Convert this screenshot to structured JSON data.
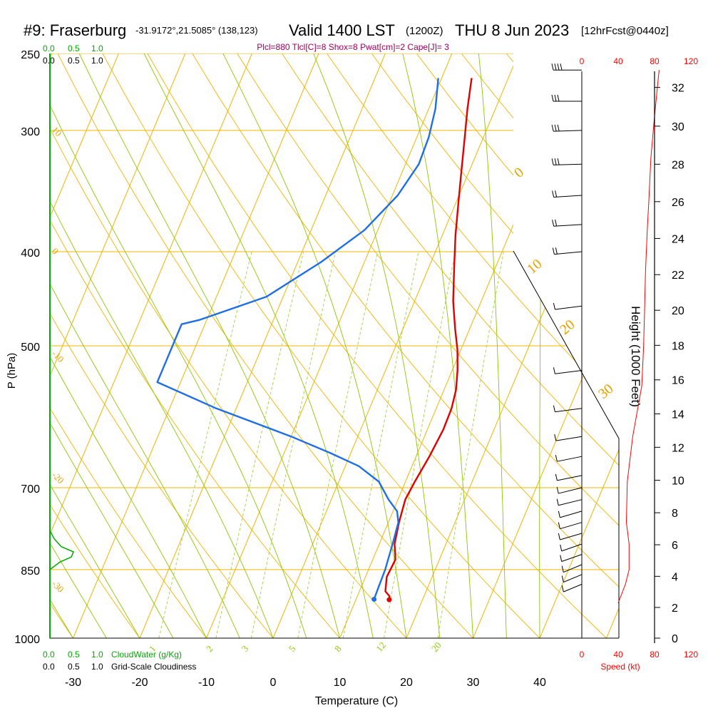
{
  "header": {
    "station": "#9: Fraserburg",
    "coords": "-31.9172°,21.5085° (138,123)",
    "valid": "Valid 1400 LST",
    "zulu": "(1200Z)",
    "date": "THU 8 Jun 2023",
    "forecast": "[12hrFcst@0440z]"
  },
  "indices": "Plcl=880 Tlcl[C]=8 Shox=8 Pwat[cm]=2 Cape[J]= 3",
  "colors": {
    "isotherm": "#f0b400",
    "dry_adiabat": "#8cc800",
    "mixing_ratio": "#a0d040",
    "temperature": "#e00000",
    "dewpoint": "#1e6ee6",
    "cloud": "#00aa00",
    "wind_profile": "#ff0000"
  },
  "cloud_axis": {
    "top_green": [
      "0.0",
      "0.5",
      "1.0"
    ],
    "top_black": [
      "0.0",
      "0.5",
      "1.0"
    ],
    "bottom_green": [
      "0.0",
      "0.5",
      "1.0"
    ],
    "bottom_green_title": "CloudWater (g/Kg)",
    "bottom_black": [
      "0.0",
      "0.5",
      "1.0"
    ],
    "bottom_black_title": "Grid-Scale Cloudiness"
  },
  "speed_axis": {
    "top": [
      "0",
      "40",
      "80",
      "120"
    ],
    "bottom": [
      "0",
      "40",
      "80",
      "120"
    ],
    "title": "Speed (kt)"
  },
  "height_axis_title": "Height (1000 Feet)",
  "chart_data": {
    "type": "line",
    "title": "",
    "xlabel": "Temperature (C)",
    "ylabel": "P (hPa)",
    "x_ticks": [
      -30,
      -20,
      -10,
      0,
      10,
      20,
      30,
      40
    ],
    "pressure_ticks": [
      250,
      300,
      400,
      500,
      700,
      850,
      1000
    ],
    "ylim": [
      1000,
      250
    ],
    "y_scale": "log",
    "grid": true,
    "isotherm_labels": [
      {
        "text": "10",
        "p": 300
      },
      {
        "text": "0",
        "p": 400
      },
      {
        "text": "-10",
        "p": 510
      },
      {
        "text": "-20",
        "p": 680
      },
      {
        "text": "-30",
        "p": 880
      }
    ],
    "theta_labels": [
      "0",
      "10",
      "20",
      "30"
    ],
    "mixing_ratio_labels": [
      "1",
      "2",
      "3",
      "5",
      "8",
      "12",
      "20"
    ],
    "series": [
      {
        "key": "temperature",
        "points": [
          [
            -5.5,
            265
          ],
          [
            -4.2,
            285
          ],
          [
            -2.8,
            305
          ],
          [
            -1.2,
            330
          ],
          [
            0.3,
            355
          ],
          [
            2.0,
            385
          ],
          [
            3.8,
            415
          ],
          [
            5.8,
            450
          ],
          [
            7.8,
            480
          ],
          [
            9.5,
            505
          ],
          [
            10.8,
            530
          ],
          [
            11.8,
            555
          ],
          [
            12.3,
            580
          ],
          [
            12.4,
            610
          ],
          [
            12.0,
            650
          ],
          [
            11.4,
            690
          ],
          [
            11.1,
            720
          ],
          [
            11.6,
            760
          ],
          [
            12.3,
            800
          ],
          [
            13.4,
            830
          ],
          [
            13.2,
            865
          ],
          [
            13.9,
            895
          ],
          [
            14.8,
            905
          ],
          [
            15.0,
            913
          ]
        ]
      },
      {
        "key": "dewpoint",
        "points": [
          [
            -10.5,
            265
          ],
          [
            -9.0,
            285
          ],
          [
            -8.2,
            305
          ],
          [
            -8.0,
            325
          ],
          [
            -9.2,
            350
          ],
          [
            -12.0,
            380
          ],
          [
            -16.5,
            410
          ],
          [
            -22.5,
            445
          ],
          [
            -31.0,
            470
          ],
          [
            -33.5,
            475
          ],
          [
            -33.5,
            545
          ],
          [
            -23.0,
            580
          ],
          [
            -10.0,
            620
          ],
          [
            -3.0,
            645
          ],
          [
            2.0,
            665
          ],
          [
            6.0,
            690
          ],
          [
            8.6,
            720
          ],
          [
            10.6,
            740
          ],
          [
            11.5,
            760
          ],
          [
            12.0,
            800
          ],
          [
            12.5,
            850
          ],
          [
            12.6,
            885
          ],
          [
            12.7,
            912
          ]
        ]
      }
    ],
    "cloud_water_profile": [
      [
        0.0,
        775
      ],
      [
        0.06,
        790
      ],
      [
        0.16,
        805
      ],
      [
        0.33,
        815
      ],
      [
        0.3,
        825
      ],
      [
        0.14,
        835
      ],
      [
        0.0,
        850
      ]
    ],
    "wind_speed_profile": [
      [
        85,
        260
      ],
      [
        80,
        290
      ],
      [
        76,
        320
      ],
      [
        74,
        350
      ],
      [
        72,
        380
      ],
      [
        70,
        420
      ],
      [
        69,
        460
      ],
      [
        68,
        500
      ],
      [
        66,
        550
      ],
      [
        56,
        620
      ],
      [
        50,
        690
      ],
      [
        49,
        760
      ],
      [
        52,
        800
      ],
      [
        52,
        850
      ],
      [
        48,
        880
      ],
      [
        40,
        920
      ]
    ],
    "wind_barbs": [
      {
        "p": 260,
        "dir": 270,
        "kt": 35
      },
      {
        "p": 280,
        "dir": 270,
        "kt": 30
      },
      {
        "p": 300,
        "dir": 275,
        "kt": 25
      },
      {
        "p": 325,
        "dir": 275,
        "kt": 25
      },
      {
        "p": 350,
        "dir": 280,
        "kt": 20
      },
      {
        "p": 375,
        "dir": 280,
        "kt": 15
      },
      {
        "p": 400,
        "dir": 285,
        "kt": 15
      },
      {
        "p": 455,
        "dir": 290,
        "kt": 10
      },
      {
        "p": 530,
        "dir": 290,
        "kt": 10
      },
      {
        "p": 580,
        "dir": 290,
        "kt": 10
      },
      {
        "p": 620,
        "dir": 295,
        "kt": 10
      },
      {
        "p": 650,
        "dir": 300,
        "kt": 10
      },
      {
        "p": 680,
        "dir": 300,
        "kt": 10
      },
      {
        "p": 700,
        "dir": 305,
        "kt": 10
      },
      {
        "p": 720,
        "dir": 305,
        "kt": 10
      },
      {
        "p": 740,
        "dir": 310,
        "kt": 10
      },
      {
        "p": 760,
        "dir": 310,
        "kt": 10
      },
      {
        "p": 780,
        "dir": 310,
        "kt": 10
      },
      {
        "p": 800,
        "dir": 315,
        "kt": 10
      },
      {
        "p": 820,
        "dir": 315,
        "kt": 10
      },
      {
        "p": 840,
        "dir": 320,
        "kt": 5
      },
      {
        "p": 860,
        "dir": 320,
        "kt": 5
      },
      {
        "p": 880,
        "dir": 320,
        "kt": 5
      }
    ],
    "height_ticks": [
      0,
      2,
      4,
      6,
      8,
      10,
      12,
      14,
      16,
      18,
      20,
      22,
      24,
      26,
      28,
      30,
      32
    ]
  }
}
